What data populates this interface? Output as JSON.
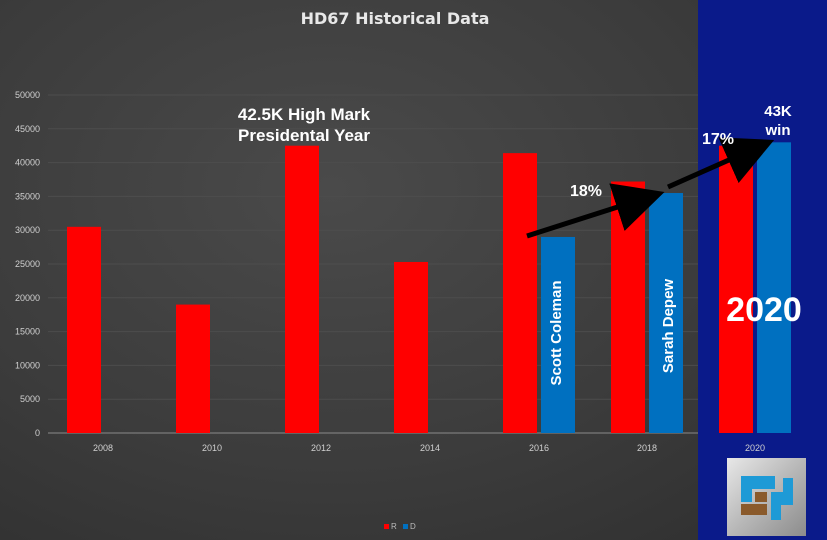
{
  "chart_data": {
    "type": "bar",
    "title": "HD67 Historical Data",
    "categories": [
      "2008",
      "2010",
      "2012",
      "2014",
      "2016",
      "2018",
      "2020"
    ],
    "series": [
      {
        "name": "R",
        "color": "#ff0000",
        "values": [
          30500,
          19000,
          42500,
          25300,
          41400,
          37200,
          42500
        ]
      },
      {
        "name": "D",
        "color": "#0070c0",
        "values": [
          null,
          null,
          null,
          null,
          29000,
          35500,
          43000
        ]
      }
    ],
    "ylim": [
      0,
      50000
    ],
    "yticks": [
      "0",
      "5000",
      "10000",
      "15000",
      "20000",
      "25000",
      "30000",
      "35000",
      "40000",
      "45000",
      "50000"
    ],
    "grid": true,
    "legend": "bottom",
    "annotations": {
      "high_mark_line1": "42.5K High Mark",
      "high_mark_line2": "Presidental Year",
      "pct_2018": "18%",
      "pct_2020": "17%",
      "win_line1": "43K",
      "win_line2": "win",
      "year_big": "2020",
      "bar_label_2016": "Scott Coleman",
      "bar_label_2018": "Sarah Depew"
    }
  },
  "legend": {
    "r_label": "R",
    "d_label": "D"
  },
  "logo": {
    "name": "mcp-logo-icon"
  }
}
